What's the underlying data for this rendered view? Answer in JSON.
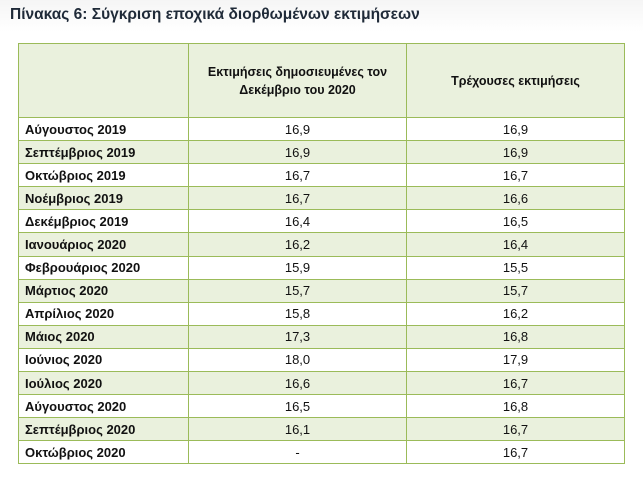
{
  "title": "Πίνακας 6: Σύγκριση εποχικά διορθωμένων εκτιμήσεων",
  "table": {
    "headers": [
      "",
      "Εκτιμήσεις δημοσιευμένες τον Δεκέμβριο του 2020",
      "Τρέχουσες εκτιμήσεις"
    ],
    "rows": [
      [
        "Αύγουστος 2019",
        "16,9",
        "16,9"
      ],
      [
        "Σεπτέμβριος 2019",
        "16,9",
        "16,9"
      ],
      [
        "Οκτώβριος 2019",
        "16,7",
        "16,7"
      ],
      [
        "Νοέμβριος 2019",
        "16,7",
        "16,6"
      ],
      [
        "Δεκέμβριος 2019",
        "16,4",
        "16,5"
      ],
      [
        "Ιανουάριος 2020",
        "16,2",
        "16,4"
      ],
      [
        "Φεβρουάριος 2020",
        "15,9",
        "15,5"
      ],
      [
        "Μάρτιος 2020",
        "15,7",
        "15,7"
      ],
      [
        "Απρίλιος 2020",
        "15,8",
        "16,2"
      ],
      [
        "Μάιος 2020",
        "17,3",
        "16,8"
      ],
      [
        "Ιούνιος 2020",
        "18,0",
        "17,9"
      ],
      [
        "Ιούλιος 2020",
        "16,6",
        "16,7"
      ],
      [
        "Αύγουστος 2020",
        "16,5",
        "16,8"
      ],
      [
        "Σεπτέμβριος 2020",
        "16,1",
        "16,7"
      ],
      [
        "Οκτώβριος 2020",
        "-",
        "16,7"
      ]
    ]
  },
  "colors": {
    "border": "#9bbb59",
    "row_shade": "#eaf1dd",
    "title_text": "#1f2a38"
  }
}
